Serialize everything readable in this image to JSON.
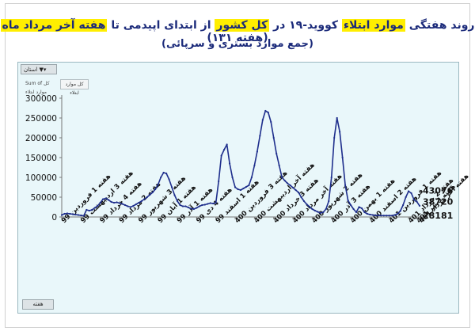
{
  "title_parts": {
    "p1": "روند هفتگی",
    "p2": "موارد ابتلاء",
    "p3": "کووید-۱۹ در",
    "p4": "کل کشور",
    "p5": "از ابتدای اپیدمی تا",
    "p6": "هفته آخر مرداد ماه",
    "p7": "(هفته ۱۳۱)"
  },
  "subtitle": "(جمع موارد بستری و سرپائی)",
  "ui": {
    "filter_label": "استان",
    "field_label": "Sum of کل موارد ابتلاء",
    "legend_label": "کل موارد ابتلاء",
    "axis_field_label": "هفته"
  },
  "colors": {
    "line": "#1e2e8c",
    "plot_bg": "#e9f7fa",
    "highlight": "#ffee00",
    "title": "#1b2a7a"
  },
  "chart_data": {
    "type": "line",
    "title": "روند هفتگی موارد ابتلاء کووید-۱۹ در کل کشور از ابتدای اپیدمی تا هفته آخر مرداد ماه (هفته ۱۳۱)",
    "subtitle": "(جمع موارد بستری و سرپائی)",
    "ylim": [
      0,
      300000
    ],
    "yticks": [
      0,
      50000,
      100000,
      150000,
      200000,
      250000,
      300000
    ],
    "ytick_labels": [
      "0",
      "50000",
      "100000",
      "150000",
      "200000",
      "250000",
      "300000"
    ],
    "n_weeks": 131,
    "xtick_labels": [
      {
        "week": 1,
        "label": "هفته 1 فروردین 99"
      },
      {
        "week": 8,
        "label": "هفته 3 اردیبهشت 99"
      },
      {
        "week": 15,
        "label": "هفته 4 خرداد 99"
      },
      {
        "week": 22,
        "label": "هفته 2 مرداد 99"
      },
      {
        "week": 29,
        "label": "هفته 3 شهریور 99"
      },
      {
        "week": 36,
        "label": "هفته 1 آبان 99"
      },
      {
        "week": 43,
        "label": "هفته 1 آذر 99"
      },
      {
        "week": 50,
        "label": "هفته 4 دی 99"
      },
      {
        "week": 57,
        "label": "هفته 1 اسفند 99"
      },
      {
        "week": 64,
        "label": "هفته 3 فروردین 400"
      },
      {
        "week": 71,
        "label": "هفته آخر اردیبهشت 400"
      },
      {
        "week": 78,
        "label": "هفته 3 خرداد 400"
      },
      {
        "week": 85,
        "label": "هفته آخر مرداد 400"
      },
      {
        "week": 92,
        "label": "هفته 2 شهریور 400"
      },
      {
        "week": 99,
        "label": "هفته 3 آذر 400"
      },
      {
        "week": 106,
        "label": "هفته 1 بهمن 400"
      },
      {
        "week": 113,
        "label": "هفته 2 اسفند 400"
      },
      {
        "week": 120,
        "label": "هفته 1 فروردین 401"
      },
      {
        "week": 127,
        "label": "هفته 2 خرداد 401"
      },
      {
        "week": 130,
        "label": "هفته 3 تیر 401"
      },
      {
        "week": 131,
        "label": "هفته آخر مرداد 401"
      }
    ],
    "values": [
      5000,
      8000,
      9000,
      8000,
      7000,
      6000,
      5000,
      4000,
      3000,
      18000,
      16000,
      18000,
      23000,
      28000,
      36000,
      45000,
      47000,
      43000,
      38000,
      36000,
      37000,
      35000,
      33000,
      30000,
      27000,
      25000,
      28000,
      32000,
      36000,
      40000,
      45000,
      50000,
      56000,
      62000,
      70000,
      82000,
      100000,
      112000,
      110000,
      95000,
      75000,
      55000,
      40000,
      30000,
      27000,
      27000,
      24000,
      21000,
      20000,
      23000,
      27000,
      30000,
      31000,
      33000,
      35000,
      34000,
      36000,
      90000,
      155000,
      170000,
      183000,
      135000,
      100000,
      75000,
      70000,
      68000,
      72000,
      76000,
      80000,
      100000,
      130000,
      165000,
      205000,
      245000,
      268000,
      264000,
      240000,
      200000,
      160000,
      130000,
      100000,
      92000,
      85000,
      80000,
      74000,
      68000,
      62000,
      50000,
      40000,
      32000,
      26000,
      20000,
      16000,
      13000,
      10000,
      12000,
      20000,
      40000,
      100000,
      200000,
      250000,
      215000,
      150000,
      80000,
      42000,
      30000,
      20000,
      12000,
      25000,
      22000,
      12000,
      8000,
      6000,
      5000,
      4000,
      4000,
      3500,
      3500,
      3500,
      3500,
      3500,
      5000,
      8000,
      15000,
      30000,
      50000,
      65000,
      60000,
      43076,
      38720,
      28181
    ],
    "data_labels": [
      {
        "week": 129,
        "text": "43076"
      },
      {
        "week": 130,
        "text": "38720"
      },
      {
        "week": 131,
        "text": "28181"
      }
    ],
    "grid": false,
    "legend": "none"
  }
}
